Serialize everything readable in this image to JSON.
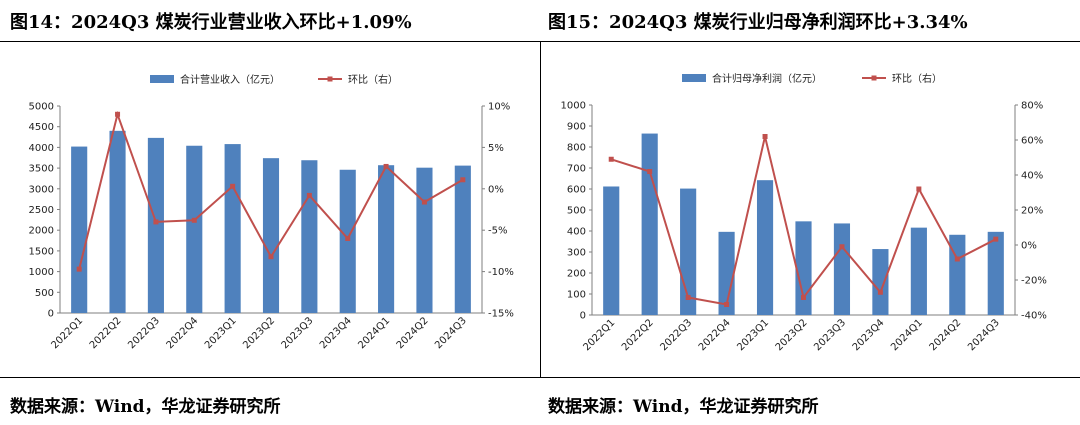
{
  "figures": [
    {
      "title": "图14：2024Q3 煤炭行业营业收入环比+1.09%",
      "source": "数据来源：Wind，华龙证券研究所"
    },
    {
      "title": "图15：2024Q3 煤炭行业归母净利润环比+3.34%",
      "source": "数据来源：Wind，华龙证券研究所"
    }
  ],
  "colors": {
    "bar": "#4f81bd",
    "line": "#c0504d",
    "axis": "#7f7f7f"
  },
  "chart_data": [
    {
      "type": "bar",
      "title": "图14：2024Q3 煤炭行业营业收入环比+1.09%",
      "categories": [
        "2022Q1",
        "2022Q2",
        "2022Q3",
        "2022Q4",
        "2023Q1",
        "2023Q2",
        "2023Q3",
        "2023Q4",
        "2024Q1",
        "2024Q2",
        "2024Q3"
      ],
      "series": [
        {
          "name": "合计营业收入（亿元）",
          "type": "bar",
          "axis": "left",
          "values": [
            4020,
            4400,
            4230,
            4040,
            4080,
            3740,
            3690,
            3460,
            3570,
            3510,
            3560
          ]
        },
        {
          "name": "环比（右）",
          "type": "line",
          "axis": "right",
          "values": [
            -9.7,
            9.0,
            -4.0,
            -3.8,
            0.3,
            -8.2,
            -0.8,
            -6.0,
            2.7,
            -1.6,
            1.09
          ]
        }
      ],
      "ylim": [
        0,
        5000
      ],
      "yticks": [
        "0",
        "500",
        "1000",
        "1500",
        "2000",
        "2500",
        "3000",
        "3500",
        "4000",
        "4500",
        "5000"
      ],
      "y2lim": [
        -15,
        10
      ],
      "y2ticks": [
        "-15%",
        "-10%",
        "-5%",
        "0%",
        "5%",
        "10%"
      ],
      "legend": "top"
    },
    {
      "type": "bar",
      "title": "图15：2024Q3 煤炭行业归母净利润环比+3.34%",
      "categories": [
        "2022Q1",
        "2022Q2",
        "2022Q3",
        "2022Q4",
        "2023Q1",
        "2023Q2",
        "2023Q3",
        "2023Q4",
        "2024Q1",
        "2024Q2",
        "2024Q3"
      ],
      "series": [
        {
          "name": "合计归母净利润（亿元）",
          "type": "bar",
          "axis": "left",
          "values": [
            612,
            864,
            602,
            396,
            642,
            446,
            436,
            314,
            416,
            382,
            396
          ]
        },
        {
          "name": "环比（右）",
          "type": "line",
          "axis": "right",
          "values": [
            49,
            42,
            -30,
            -34,
            62,
            -30,
            -1,
            -27,
            32,
            -8,
            3.34
          ]
        }
      ],
      "ylim": [
        0,
        1000
      ],
      "yticks": [
        "0",
        "100",
        "200",
        "300",
        "400",
        "500",
        "600",
        "700",
        "800",
        "900",
        "1000"
      ],
      "y2lim": [
        -40,
        80
      ],
      "y2ticks": [
        "-40%",
        "-20%",
        "0%",
        "20%",
        "40%",
        "60%",
        "80%"
      ],
      "legend": "top"
    }
  ]
}
